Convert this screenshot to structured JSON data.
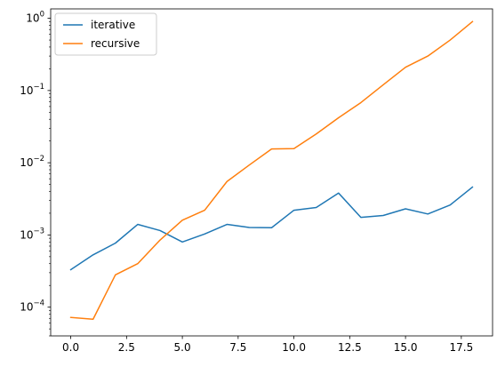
{
  "chart_data": {
    "type": "line",
    "title": "",
    "xlabel": "",
    "ylabel": "",
    "y_scale": "log",
    "xlim": [
      -0.9,
      18.9
    ],
    "ylim": [
      4e-05,
      1.35
    ],
    "grid": false,
    "legend_position": "top-left",
    "x_ticks": [
      0,
      2.5,
      5,
      7.5,
      10,
      12.5,
      15,
      17.5
    ],
    "x_tick_labels": [
      "0.0",
      "2.5",
      "5.0",
      "7.5",
      "10.0",
      "12.5",
      "15.0",
      "17.5"
    ],
    "y_ticks": [
      0.0001,
      0.001,
      0.01,
      0.1,
      1
    ],
    "y_tick_labels": [
      {
        "base": "10",
        "exp": "−4"
      },
      {
        "base": "10",
        "exp": "−3"
      },
      {
        "base": "10",
        "exp": "−2"
      },
      {
        "base": "10",
        "exp": "−1"
      },
      {
        "base": "10",
        "exp": "0"
      }
    ],
    "x": [
      0,
      1,
      2,
      3,
      4,
      5,
      6,
      7,
      8,
      9,
      10,
      11,
      12,
      13,
      14,
      15,
      16,
      17,
      18
    ],
    "series": [
      {
        "name": "iterative",
        "color": "#1f77b4",
        "values": [
          0.00033,
          0.00053,
          0.00077,
          0.0014,
          0.00115,
          0.0008,
          0.00103,
          0.0014,
          0.00127,
          0.00126,
          0.0022,
          0.0024,
          0.0038,
          0.00175,
          0.00186,
          0.0023,
          0.00195,
          0.0026,
          0.0046
        ]
      },
      {
        "name": "recursive",
        "color": "#ff7f0e",
        "values": [
          7.2e-05,
          6.8e-05,
          0.00028,
          0.0004,
          0.00085,
          0.0016,
          0.0022,
          0.0055,
          0.0093,
          0.0155,
          0.0157,
          0.025,
          0.042,
          0.068,
          0.12,
          0.21,
          0.3,
          0.5,
          0.9
        ]
      }
    ]
  }
}
